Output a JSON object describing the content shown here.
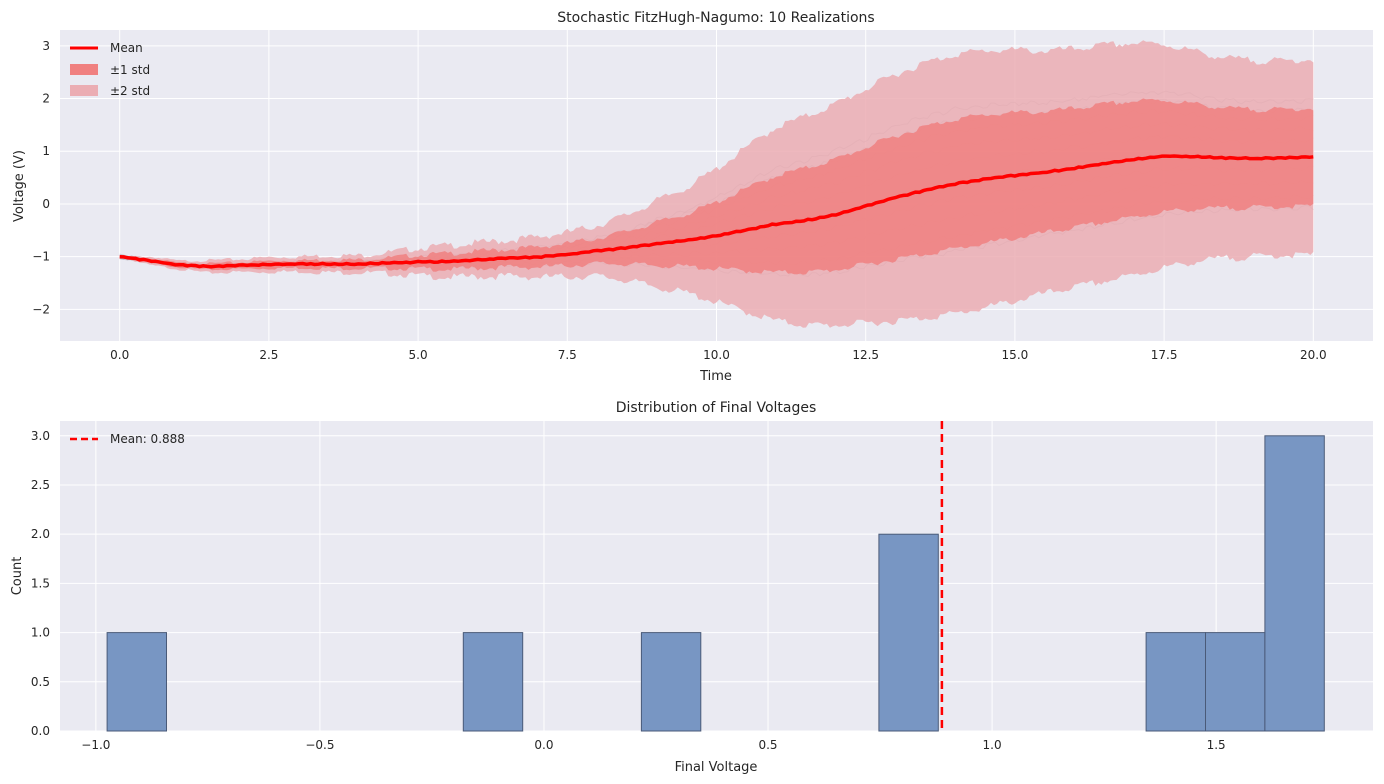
{
  "colors": {
    "axes_bg": "#eaeaf2",
    "grid": "#ffffff",
    "mean_line": "#ff0000",
    "band1": "#f08080",
    "band2": "#ebadb3",
    "realization": "#a0a0a8",
    "hist_bar": "#7896c3",
    "hist_edge": "#4a5a78"
  },
  "chart_data": [
    {
      "type": "line",
      "title": "Stochastic FitzHugh-Nagumo: 10 Realizations",
      "xlabel": "Time",
      "ylabel": "Voltage (V)",
      "xlim": [
        -1.0,
        21.0
      ],
      "ylim": [
        -2.6,
        3.3
      ],
      "xticks": [
        0.0,
        2.5,
        5.0,
        7.5,
        10.0,
        12.5,
        15.0,
        17.5,
        20.0
      ],
      "xtick_labels": [
        "0.0",
        "2.5",
        "5.0",
        "7.5",
        "10.0",
        "12.5",
        "15.0",
        "17.5",
        "20.0"
      ],
      "yticks": [
        -2,
        -1,
        0,
        1,
        2,
        3
      ],
      "ytick_labels": [
        "−2",
        "−1",
        "0",
        "1",
        "2",
        "3"
      ],
      "grid": true,
      "legend_position": "top-left",
      "legend": {
        "mean": "Mean",
        "band1": "±1 std",
        "band2": "±2 std"
      },
      "x": [
        0,
        0.5,
        1,
        1.5,
        2,
        2.5,
        3,
        3.5,
        4,
        4.5,
        5,
        5.5,
        6,
        6.5,
        7,
        7.5,
        8,
        8.5,
        9,
        9.5,
        10,
        10.5,
        11,
        11.5,
        12,
        12.5,
        13,
        13.5,
        14,
        14.5,
        15,
        15.5,
        16,
        16.5,
        17,
        17.5,
        18,
        18.5,
        19,
        19.5,
        20
      ],
      "series": [
        {
          "name": "Mean",
          "values": [
            -1.0,
            -1.08,
            -1.16,
            -1.19,
            -1.17,
            -1.15,
            -1.14,
            -1.14,
            -1.14,
            -1.12,
            -1.1,
            -1.09,
            -1.06,
            -1.03,
            -1.01,
            -0.96,
            -0.89,
            -0.83,
            -0.76,
            -0.69,
            -0.6,
            -0.49,
            -0.38,
            -0.31,
            -0.2,
            -0.04,
            0.12,
            0.26,
            0.38,
            0.47,
            0.54,
            0.6,
            0.68,
            0.77,
            0.85,
            0.91,
            0.9,
            0.87,
            0.86,
            0.87,
            0.89
          ]
        },
        {
          "name": "±1 std",
          "lower": [
            -1.0,
            -1.12,
            -1.2,
            -1.25,
            -1.23,
            -1.22,
            -1.21,
            -1.22,
            -1.22,
            -1.22,
            -1.23,
            -1.24,
            -1.22,
            -1.2,
            -1.2,
            -1.17,
            -1.13,
            -1.14,
            -1.17,
            -1.19,
            -1.23,
            -1.27,
            -1.3,
            -1.3,
            -1.25,
            -1.15,
            -1.05,
            -0.95,
            -0.85,
            -0.75,
            -0.65,
            -0.55,
            -0.45,
            -0.35,
            -0.25,
            -0.15,
            -0.1,
            -0.08,
            -0.07,
            -0.05,
            -0.04
          ],
          "upper": [
            -1.0,
            -1.04,
            -1.12,
            -1.13,
            -1.11,
            -1.08,
            -1.07,
            -1.06,
            -1.06,
            -1.02,
            -0.97,
            -0.94,
            -0.9,
            -0.86,
            -0.82,
            -0.75,
            -0.65,
            -0.52,
            -0.35,
            -0.19,
            0.03,
            0.29,
            0.54,
            0.68,
            0.85,
            1.07,
            1.29,
            1.47,
            1.61,
            1.69,
            1.73,
            1.75,
            1.81,
            1.89,
            1.95,
            1.97,
            1.9,
            1.82,
            1.79,
            1.79,
            1.82
          ]
        },
        {
          "name": "±2 std",
          "lower": [
            -1.0,
            -1.16,
            -1.24,
            -1.31,
            -1.29,
            -1.29,
            -1.28,
            -1.3,
            -1.3,
            -1.32,
            -1.36,
            -1.39,
            -1.38,
            -1.37,
            -1.39,
            -1.38,
            -1.37,
            -1.45,
            -1.58,
            -1.69,
            -1.86,
            -2.05,
            -2.22,
            -2.3,
            -2.3,
            -2.26,
            -2.22,
            -2.16,
            -2.08,
            -1.97,
            -1.84,
            -1.7,
            -1.58,
            -1.47,
            -1.35,
            -1.21,
            -1.1,
            -1.03,
            -1.0,
            -0.97,
            -0.97
          ]
        }
      ],
      "band2_upper": [
        -1.0,
        -1.0,
        -1.08,
        -1.07,
        -1.05,
        -1.01,
        -1.0,
        -0.98,
        -0.98,
        -0.92,
        -0.84,
        -0.79,
        -0.74,
        -0.69,
        -0.63,
        -0.54,
        -0.41,
        -0.21,
        0.06,
        0.31,
        0.66,
        1.07,
        1.46,
        1.66,
        1.9,
        2.18,
        2.46,
        2.68,
        2.84,
        2.91,
        2.92,
        2.9,
        2.94,
        3.01,
        3.05,
        3.03,
        2.9,
        2.77,
        2.72,
        2.71,
        2.75
      ]
    },
    {
      "type": "bar",
      "title": "Distribution of Final Voltages",
      "xlabel": "Final Voltage",
      "ylabel": "Count",
      "xlim": [
        -1.08,
        1.85
      ],
      "ylim": [
        0,
        3.15
      ],
      "xticks": [
        -1.0,
        -0.5,
        0.0,
        0.5,
        1.0,
        1.5
      ],
      "xtick_labels": [
        "−1.0",
        "−0.5",
        "0.0",
        "0.5",
        "1.0",
        "1.5"
      ],
      "yticks": [
        0,
        0.5,
        1.0,
        1.5,
        2.0,
        2.5,
        3.0
      ],
      "ytick_labels": [
        "0.0",
        "0.5",
        "1.0",
        "1.5",
        "2.0",
        "2.5",
        "3.0"
      ],
      "grid": true,
      "legend_position": "top-left",
      "bin_width": 0.1325,
      "bins": [
        {
          "start": -0.975,
          "count": 1
        },
        {
          "start": -0.18,
          "count": 1
        },
        {
          "start": 0.2175,
          "count": 1
        },
        {
          "start": 0.7475,
          "count": 2
        },
        {
          "start": 1.3437,
          "count": 1
        },
        {
          "start": 1.4762,
          "count": 1
        },
        {
          "start": 1.6087,
          "count": 3
        }
      ],
      "mean_line": {
        "value": 0.888,
        "label": "Mean: 0.888"
      }
    }
  ]
}
